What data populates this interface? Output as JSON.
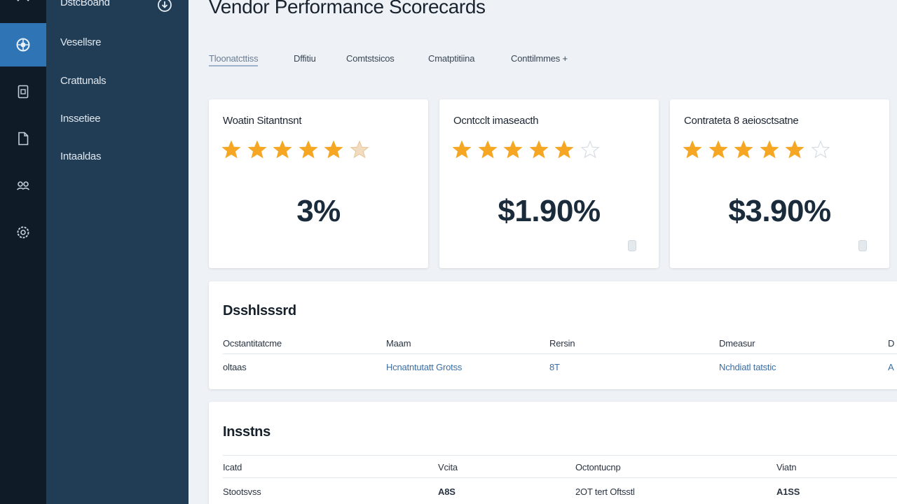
{
  "sidebar": {
    "header": "DstcBoand",
    "items": [
      "Vesellsre",
      "Crattunals",
      "Inssetiee",
      "Intaaldas"
    ]
  },
  "rail": {
    "icons": [
      "globe-icon",
      "document-icon",
      "file-icon",
      "people-icon",
      "settings-icon"
    ],
    "active_index": 0
  },
  "page": {
    "title": "Vendor Performance Scorecards"
  },
  "tabs": [
    "Tloonatcttiss",
    "Dffitiu",
    "Comtstsicos",
    "Cmatptitiina",
    "Conttilmmes +"
  ],
  "cards": [
    {
      "title": "Woatin Sitantnsnt",
      "value": "3%",
      "rating": 5.5
    },
    {
      "title": "Ocntcclt imaseacth",
      "value": "$1.90%",
      "rating": 5
    },
    {
      "title": "Contrateta 8 aeiosctsatne",
      "value": "$3.90%",
      "rating": 5
    }
  ],
  "dashboard_table": {
    "title": "Dsshlsssrd",
    "columns": [
      "Ocstantitatcme",
      "Maam",
      "Rersin",
      "Dmeasur",
      "D"
    ],
    "rows": [
      [
        "oltaas",
        "Hcnatntutatt Grotss",
        "8T",
        "Nchdiatl tatstic",
        "A"
      ]
    ]
  },
  "insights_table": {
    "title": "Insstns",
    "columns": [
      "Icatd",
      "Vcita",
      "Octontucnp",
      "Viatn"
    ],
    "rows": [
      [
        "Stootsvss",
        "A8S",
        "2OT tert Oftsstl",
        "A1SS"
      ]
    ]
  },
  "colors": {
    "accent": "#2f75b5",
    "star": "#f5a623",
    "sidebar": "#213d55",
    "rail": "#0f1b26"
  }
}
